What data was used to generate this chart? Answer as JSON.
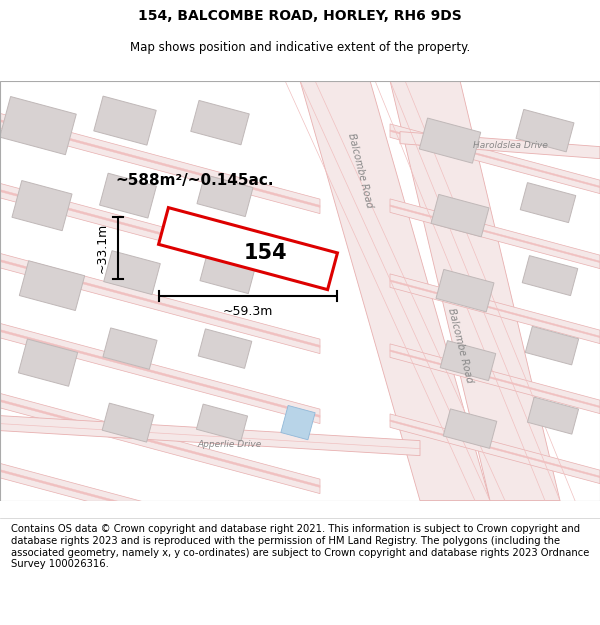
{
  "title": "154, BALCOMBE ROAD, HORLEY, RH6 9DS",
  "subtitle": "Map shows position and indicative extent of the property.",
  "footer": "Contains OS data © Crown copyright and database right 2021. This information is subject to Crown copyright and database rights 2023 and is reproduced with the permission of HM Land Registry. The polygons (including the associated geometry, namely x, y co-ordinates) are subject to Crown copyright and database rights 2023 Ordnance Survey 100026316.",
  "area_label": "~588m²/~0.145ac.",
  "width_label": "~59.3m",
  "height_label": "~33.1m",
  "plot_number": "154",
  "road_fill": "#f5e8e8",
  "road_edge": "#e8b0b0",
  "road_line": "#f0c0c0",
  "building_fill": "#d8d2d2",
  "building_edge": "#c0b8b8",
  "property_edge": "#dd0000",
  "property_fill": "#ffffff",
  "water_fill": "#b8d4e8",
  "water_edge": "#90b8d8",
  "map_bg": "#faf6f6",
  "dim_color": "#000000",
  "label_color": "#888888",
  "text_color": "#000000",
  "title_fontsize": 10,
  "subtitle_fontsize": 8.5,
  "footer_fontsize": 7.2
}
